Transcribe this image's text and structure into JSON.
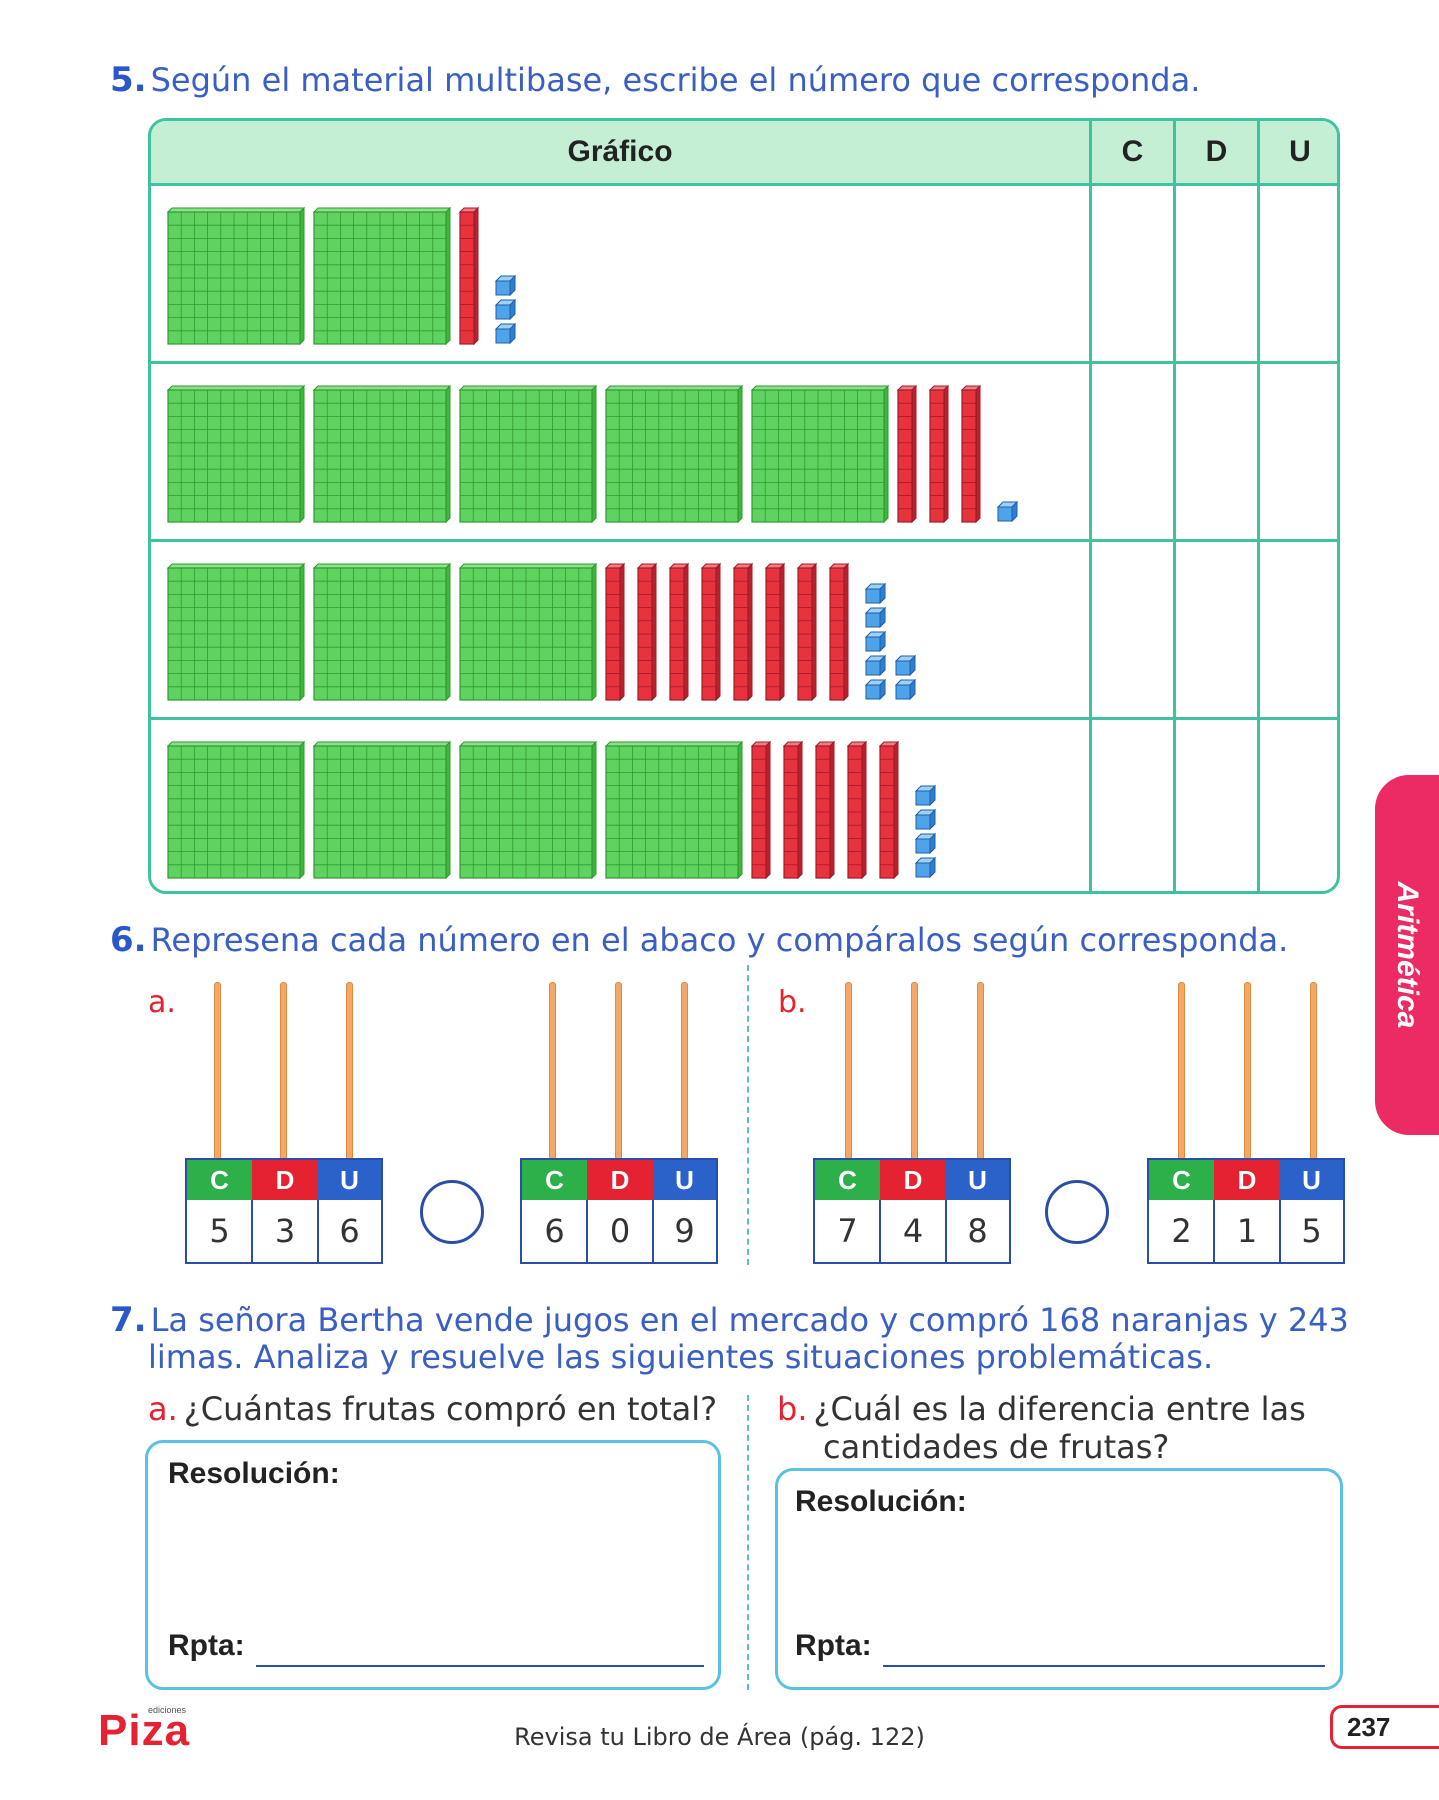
{
  "exercise5": {
    "number": "5.",
    "instruction": "Según el material multibase, escribe el número que corresponda.",
    "headers": {
      "graphic": "Gráfico",
      "c": "C",
      "d": "D",
      "u": "U"
    },
    "rows": [
      {
        "hundreds": 2,
        "tens": 1,
        "units": 3
      },
      {
        "hundreds": 5,
        "tens": 3,
        "units": 1
      },
      {
        "hundreds": 3,
        "tens": 8,
        "units": 7
      },
      {
        "hundreds": 4,
        "tens": 5,
        "units": 4
      }
    ],
    "colors": {
      "hundred": "#5fd35f",
      "ten": "#e8333f",
      "unit": "#4fa3e8"
    }
  },
  "exercise6": {
    "number": "6.",
    "instruction": "Represena cada número en el abaco y compáralos según corresponda.",
    "parts": [
      {
        "letter": "a.",
        "abaci": [
          {
            "c": "5",
            "d": "3",
            "u": "6"
          },
          {
            "c": "6",
            "d": "0",
            "u": "9"
          }
        ]
      },
      {
        "letter": "b.",
        "abaci": [
          {
            "c": "7",
            "d": "4",
            "u": "8"
          },
          {
            "c": "2",
            "d": "1",
            "u": "5"
          }
        ]
      }
    ],
    "column_labels": {
      "c": "C",
      "d": "D",
      "u": "U"
    },
    "colors": {
      "c": "#2db04a",
      "d": "#e52232",
      "u": "#2a62c9"
    }
  },
  "exercise7": {
    "number": "7.",
    "instruction_line1": "La señora Bertha vende jugos en el mercado y compró 168 naranjas y 243",
    "instruction_line2": "limas. Analiza y resuelve las siguientes situaciones problemáticas.",
    "a": {
      "letter": "a.",
      "question": "¿Cuántas frutas compró en total?"
    },
    "b": {
      "letter": "b.",
      "question_line1": "¿Cuál es la diferencia entre las",
      "question_line2": "cantidades de frutas?"
    },
    "resolution_label": "Resolución:",
    "answer_label": "Rpta:"
  },
  "side_tab": "Aritmética",
  "footer": {
    "logo": "Piza",
    "logo_small": "ediciones",
    "note": "Revisa tu Libro de Área (pág. 122)",
    "page_number": "237"
  }
}
